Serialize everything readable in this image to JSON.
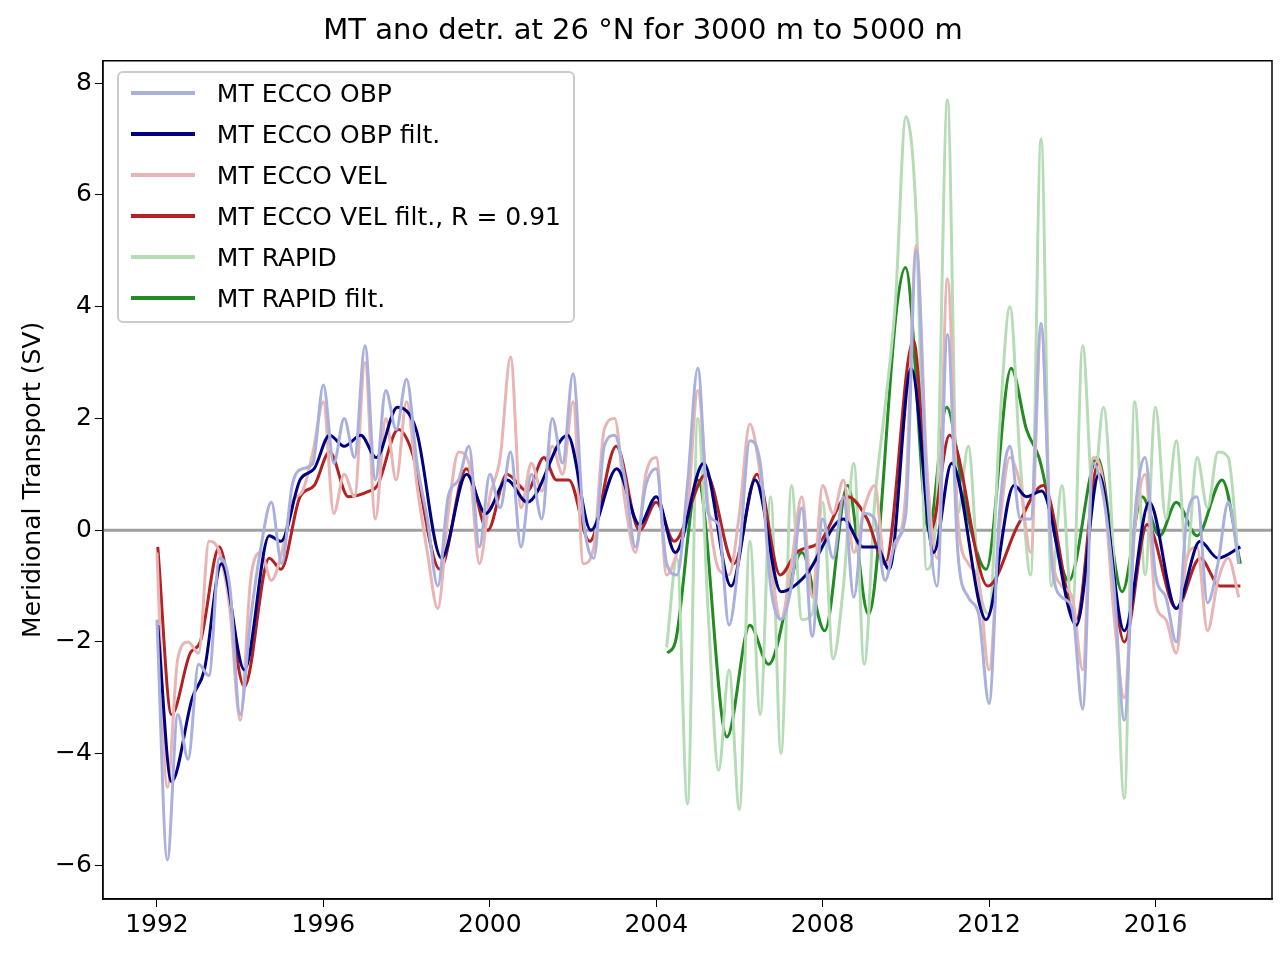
{
  "chart_data": {
    "type": "line",
    "title": "MT ano detr. at 26 °N for 3000 m to 5000 m",
    "ylabel": "Meridional Transport (SV)",
    "x": [
      1992.0,
      1992.25,
      1992.5,
      1992.75,
      1993.0,
      1993.25,
      1993.5,
      1993.75,
      1994.0,
      1994.25,
      1994.5,
      1994.75,
      1995.0,
      1995.25,
      1995.5,
      1995.75,
      1996.0,
      1996.25,
      1996.5,
      1996.75,
      1997.0,
      1997.25,
      1997.5,
      1997.75,
      1998.0,
      1998.25,
      1998.5,
      1998.75,
      1999.0,
      1999.25,
      1999.5,
      1999.75,
      2000.0,
      2000.25,
      2000.5,
      2000.75,
      2001.0,
      2001.25,
      2001.5,
      2001.75,
      2002.0,
      2002.25,
      2002.5,
      2002.75,
      2003.0,
      2003.25,
      2003.5,
      2003.75,
      2004.0,
      2004.25,
      2004.5,
      2004.75,
      2005.0,
      2005.25,
      2005.5,
      2005.75,
      2006.0,
      2006.25,
      2006.5,
      2006.75,
      2007.0,
      2007.25,
      2007.5,
      2007.75,
      2008.0,
      2008.25,
      2008.5,
      2008.75,
      2009.0,
      2009.25,
      2009.5,
      2009.75,
      2010.0,
      2010.25,
      2010.5,
      2010.75,
      2011.0,
      2011.25,
      2011.5,
      2011.75,
      2012.0,
      2012.25,
      2012.5,
      2012.75,
      2013.0,
      2013.25,
      2013.5,
      2013.75,
      2014.0,
      2014.25,
      2014.5,
      2014.75,
      2015.0,
      2015.25,
      2015.5,
      2015.75,
      2016.0,
      2016.25,
      2016.5,
      2016.75,
      2017.0,
      2017.25,
      2017.5,
      2017.75,
      2018.0
    ],
    "series": [
      {
        "name": "MT ECCO OBP",
        "type": "line",
        "color": "#aab0dd",
        "values": [
          -1.6,
          -5.9,
          -3.3,
          -4.1,
          -2.4,
          -2.6,
          -0.5,
          -1.0,
          -3.3,
          -1.6,
          -0.3,
          0.5,
          -0.6,
          0.8,
          1.1,
          1.2,
          2.6,
          1.2,
          2.0,
          1.3,
          3.3,
          0.9,
          2.5,
          1.8,
          2.7,
          1.2,
          0.2,
          -1.0,
          0.6,
          0.9,
          1.5,
          -0.3,
          1.0,
          0.4,
          1.4,
          -0.3,
          1.0,
          0.2,
          2.0,
          1.2,
          2.8,
          0.2,
          -0.5,
          1.5,
          1.7,
          0.9,
          -0.3,
          0.8,
          1.1,
          -0.6,
          -0.8,
          0.8,
          2.9,
          0.3,
          0.1,
          -1.7,
          -0.4,
          1.6,
          1.2,
          -1.0,
          -1.6,
          -1.0,
          0.4,
          -1.9,
          0.2,
          -0.5,
          0.6,
          -1.2,
          0.3,
          0.2,
          -0.9,
          -0.2,
          0.3,
          5.0,
          0.8,
          -1.0,
          3.5,
          -0.4,
          -1.2,
          -1.5,
          -3.1,
          0.3,
          1.5,
          0.2,
          0.2,
          3.7,
          -0.5,
          -1.2,
          -1.4,
          -3.2,
          1.2,
          0.6,
          -1.0,
          -3.4,
          0.2,
          1.3,
          -0.8,
          -1.2,
          -2.0,
          0.2,
          0.6,
          -1.3,
          -0.6,
          0.5,
          -0.6
        ]
      },
      {
        "name": "MT ECCO OBP filt.",
        "type": "line",
        "color": "#000080",
        "x": [
          1992.02,
          1992.35,
          1992.85,
          1993.14,
          1993.55,
          1994.1,
          1994.7,
          1994.98,
          1995.44,
          1995.78,
          1996.15,
          1996.5,
          1996.9,
          1997.27,
          1997.78,
          1998.23,
          1998.84,
          1999.44,
          1999.9,
          2000.41,
          2000.9,
          2001.87,
          2002.43,
          2003.05,
          2003.6,
          2004.0,
          2004.46,
          2005.14,
          2005.8,
          2006.38,
          2007.0,
          2007.6,
          2008.5,
          2008.97,
          2009.3,
          2009.6,
          2010.13,
          2010.67,
          2011.1,
          2011.93,
          2012.6,
          2012.9,
          2013.26,
          2014.1,
          2014.64,
          2015.25,
          2015.85,
          2016.5,
          2017.07,
          2017.5,
          2018.04
        ],
        "values": [
          -1.7,
          -4.5,
          -3.0,
          -2.5,
          -0.6,
          -2.5,
          -0.1,
          -0.2,
          0.9,
          1.1,
          1.7,
          1.5,
          1.7,
          1.3,
          2.2,
          1.8,
          -0.5,
          1.0,
          0.3,
          0.9,
          0.5,
          1.7,
          0.0,
          1.1,
          0.1,
          0.6,
          -0.4,
          1.2,
          -1.0,
          0.9,
          -1.1,
          -0.8,
          0.2,
          -0.3,
          -0.3,
          -0.7,
          2.9,
          -0.4,
          1.2,
          -1.6,
          0.8,
          0.6,
          0.7,
          -1.7,
          1.0,
          -1.8,
          0.5,
          -1.4,
          -0.2,
          -0.5,
          -0.3
        ]
      },
      {
        "name": "MT ECCO VEL",
        "type": "line",
        "color": "#e8b4b4",
        "values": [
          -0.4,
          -4.6,
          -2.3,
          -2.0,
          -2.2,
          -0.2,
          -0.4,
          -1.4,
          -3.4,
          -0.9,
          -0.4,
          -0.9,
          -0.4,
          0.5,
          0.7,
          1.4,
          2.3,
          0.3,
          1.0,
          0.6,
          3.0,
          0.2,
          2.0,
          0.9,
          2.3,
          0.8,
          -0.4,
          -1.4,
          0.3,
          1.4,
          1.2,
          -0.6,
          0.6,
          1.3,
          3.1,
          0.4,
          1.2,
          0.7,
          1.5,
          1.0,
          2.3,
          -0.6,
          -0.3,
          1.8,
          2.0,
          0.5,
          -0.4,
          1.0,
          1.3,
          -0.8,
          -0.4,
          0.3,
          2.5,
          0.4,
          -0.7,
          -0.8,
          0.3,
          1.9,
          1.0,
          -0.6,
          -1.6,
          -0.6,
          0.6,
          -1.2,
          0.8,
          0.3,
          0.9,
          -0.4,
          0.4,
          0.8,
          -0.6,
          -0.3,
          0.7,
          5.1,
          1.2,
          -0.5,
          4.5,
          0.2,
          -0.6,
          -0.9,
          -2.5,
          0.0,
          1.3,
          0.8,
          -0.4,
          3.6,
          -0.3,
          -1.0,
          -1.2,
          -2.5,
          1.3,
          0.8,
          -1.5,
          -3.0,
          0.0,
          1.0,
          -1.3,
          -1.6,
          -2.2,
          -0.5,
          -0.3,
          -1.8,
          -0.9,
          -0.5,
          -1.2
        ]
      },
      {
        "name": "MT ECCO VEL filt., R = 0.91",
        "type": "line",
        "color": "#b22222",
        "x": [
          1992.02,
          1992.35,
          1992.8,
          1993.04,
          1993.5,
          1994.1,
          1994.7,
          1994.98,
          1995.44,
          1995.78,
          1996.15,
          1996.6,
          1997.1,
          1997.3,
          1997.8,
          1998.13,
          1998.8,
          1999.44,
          1999.95,
          2000.41,
          2000.9,
          2001.3,
          2001.6,
          2001.9,
          2002.4,
          2003.04,
          2003.6,
          2004.0,
          2004.43,
          2005.2,
          2005.87,
          2006.42,
          2006.98,
          2007.37,
          2007.95,
          2008.6,
          2009.07,
          2009.5,
          2010.18,
          2010.6,
          2011.05,
          2011.97,
          2012.7,
          2013.3,
          2014.1,
          2014.62,
          2015.25,
          2015.8,
          2016.5,
          2017.07,
          2017.55,
          2018.04
        ],
        "values": [
          -0.3,
          -3.3,
          -2.2,
          -2.0,
          -0.3,
          -2.8,
          -0.5,
          -0.7,
          0.6,
          0.8,
          1.4,
          0.6,
          0.7,
          0.8,
          1.8,
          1.4,
          -0.7,
          1.1,
          0.0,
          1.0,
          0.7,
          1.3,
          0.9,
          0.9,
          -0.2,
          1.5,
          0.0,
          0.5,
          -0.2,
          1.0,
          -0.6,
          1.0,
          -0.8,
          -0.4,
          -0.2,
          0.6,
          0.2,
          -0.6,
          3.4,
          0.0,
          1.7,
          -1.0,
          0.1,
          0.8,
          -1.6,
          1.2,
          -2.0,
          0.1,
          -1.4,
          -0.5,
          -1.0,
          -1.0
        ]
      },
      {
        "name": "MT RAPID",
        "type": "line",
        "color": "#b6dcb6",
        "x": [
          2004.25,
          2004.5,
          2004.75,
          2005.0,
          2005.25,
          2005.5,
          2005.75,
          2006.0,
          2006.25,
          2006.5,
          2006.75,
          2007.0,
          2007.25,
          2007.5,
          2007.75,
          2008.0,
          2008.25,
          2008.5,
          2008.75,
          2009.0,
          2009.25,
          2009.5,
          2009.75,
          2010.0,
          2010.25,
          2010.5,
          2010.75,
          2011.0,
          2011.25,
          2011.5,
          2011.75,
          2012.0,
          2012.25,
          2012.5,
          2012.75,
          2013.0,
          2013.25,
          2013.5,
          2013.75,
          2014.0,
          2014.25,
          2014.5,
          2014.75,
          2015.0,
          2015.25,
          2015.5,
          2015.75,
          2016.0,
          2016.25,
          2016.5,
          2016.75,
          2017.0,
          2017.25,
          2017.5,
          2017.75,
          2018.0
        ],
        "values": [
          -2.1,
          -0.5,
          -4.9,
          2.0,
          -1.5,
          -4.3,
          -2.5,
          -5.0,
          -0.2,
          -3.3,
          0.6,
          -4.0,
          0.8,
          -1.6,
          -1.5,
          0.5,
          -2.3,
          -1.0,
          1.2,
          -2.4,
          0.5,
          2.2,
          4.1,
          7.4,
          5.6,
          -0.7,
          0.6,
          7.7,
          0.3,
          1.5,
          -0.9,
          -1.5,
          1.8,
          4.0,
          1.2,
          -0.8,
          7.0,
          -1.0,
          0.8,
          -1.5,
          3.3,
          0.6,
          2.2,
          -0.6,
          -4.8,
          2.3,
          -0.8,
          2.2,
          0.2,
          1.6,
          -0.5,
          1.3,
          0.4,
          1.4,
          1.3,
          -0.6
        ]
      },
      {
        "name": "MT RAPID filt.",
        "type": "line",
        "color": "#228b22",
        "x": [
          2004.27,
          2004.46,
          2005.0,
          2005.7,
          2006.25,
          2006.7,
          2007.5,
          2008.05,
          2008.6,
          2009.1,
          2009.8,
          2009.99,
          2010.55,
          2010.98,
          2011.44,
          2011.93,
          2012.53,
          2012.9,
          2013.2,
          2013.92,
          2014.6,
          2015.2,
          2015.68,
          2016.1,
          2016.5,
          2017.0,
          2017.6,
          2018.04
        ],
        "values": [
          -2.2,
          -2.0,
          0.9,
          -3.7,
          -1.7,
          -2.4,
          -0.4,
          -1.8,
          0.8,
          -1.5,
          4.1,
          4.7,
          0.0,
          2.2,
          0.4,
          -0.7,
          2.9,
          1.8,
          1.3,
          -0.9,
          1.3,
          -1.1,
          0.6,
          -0.1,
          0.5,
          -0.1,
          0.9,
          -0.6
        ]
      }
    ],
    "xlim": [
      1990.7,
      2018.8
    ],
    "ylim": [
      -6.6,
      8.4
    ],
    "xticks": [
      1992,
      1996,
      2000,
      2004,
      2008,
      2012,
      2016
    ],
    "yticks": [
      {
        "value": -6,
        "label": "−6"
      },
      {
        "value": -4,
        "label": "−4"
      },
      {
        "value": -2,
        "label": "−2"
      },
      0,
      2,
      4,
      6,
      8
    ],
    "ref_lines": [
      {
        "axis": "y",
        "value": 0,
        "color": "#a0a0a0"
      }
    ],
    "grid": false,
    "legend": "top left"
  }
}
